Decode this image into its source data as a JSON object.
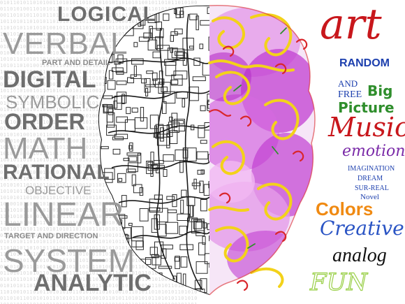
{
  "binary_text": "0101101011010100110101011010110101011010101001011010110101001011010110101011010100110101101011010010110101001011010101101011010010110101100101011010110101001010110101101010110100101101011010101001011010110101011010101101010110100101101010110101011010101001011010110101010101101010110101011010010110101011010101010110101010110100101101011010101011010101101010010110101101010101101010110101001011010101101010101010110101101010101101010110100101101011010101011010101001011010110101010110101",
  "left_words": {
    "logical": "LOGICAL",
    "verbal": "VERBAL",
    "part_and_detail": "PART AND DETAIL",
    "digital": "DIGITAL",
    "symbolic": "SYMBOLIC",
    "order": "ORDER",
    "math": "MATH",
    "rational": "RATIONAL",
    "objective": "OBJECTIVE",
    "linear": "LINEAR",
    "target_and_direction": "TARGET AND DIRECTION",
    "system": "SYSTEM",
    "analytic": "ANALYTIC"
  },
  "right_words": {
    "art": "art",
    "random": "RANDOM",
    "and": "AND",
    "free": "FREE",
    "big": "Big",
    "picture": "Picture",
    "music": "Music",
    "emotion": "emotion",
    "imagination": "IMAGINATION",
    "dream": "DREAM",
    "sur_real": "SUR-REAL",
    "novel": "Novel",
    "colors": "Colors",
    "creative": "Creative",
    "analog": "analog",
    "fun": "FUN"
  },
  "colors": {
    "left_text_gray": "#8c8c8c",
    "left_text_dark": "#6e6e6e",
    "brain_outline": "#2a2a2a",
    "paint_magenta": "#c23fd2",
    "paint_pink": "#e59ce8",
    "swirl_yellow": "#f3d21a",
    "swirl_red": "#d9262b",
    "art_red": "#c8171c",
    "random_blue": "#1c3fae",
    "green": "#2f8e2c",
    "music_red": "#c8171c",
    "emotion_purple": "#7a2aa8",
    "small_blue": "#1c3fae",
    "colors_orange": "#f08a12",
    "creative_blue": "#2a54c4",
    "analog_black": "#111111",
    "fun_green": "#9bd04a"
  }
}
